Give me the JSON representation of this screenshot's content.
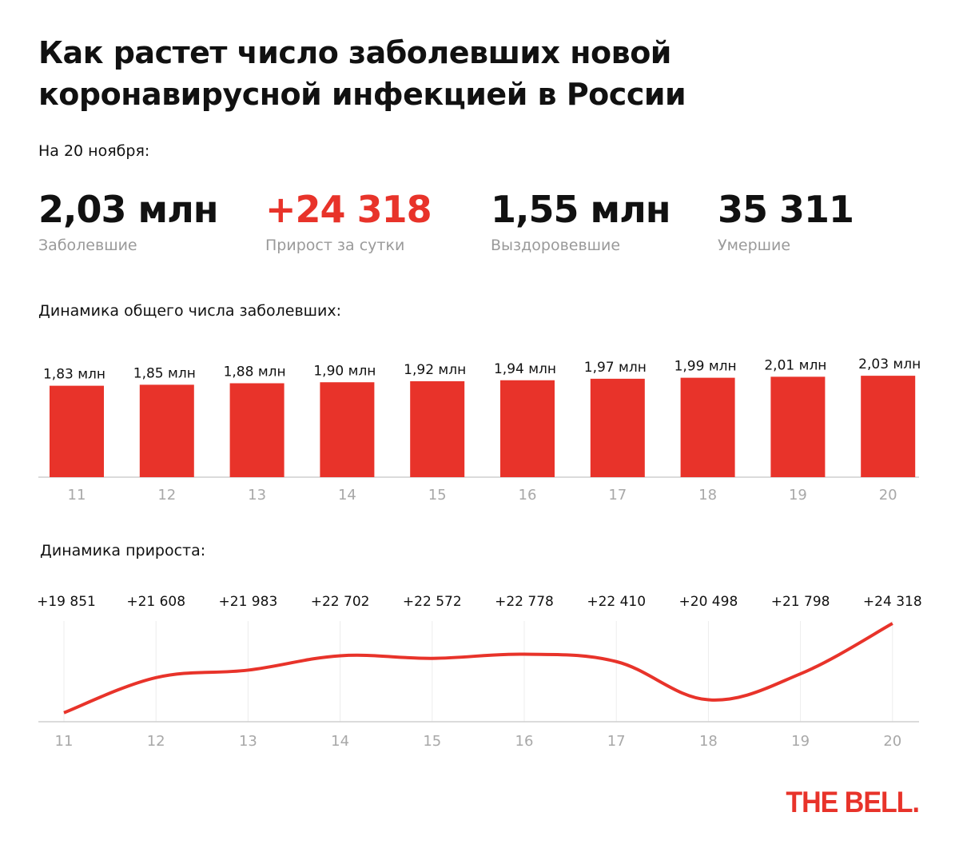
{
  "title": "Как растет число заболевших новой коронавирусной инфекцией в России",
  "date_label": "На 20 ноября:",
  "stats": [
    {
      "value": "2,03 млн",
      "label": "Заболевшие",
      "color": "#111111"
    },
    {
      "value": "+24 318",
      "label": "Прирост за сутки",
      "color": "#e8332a"
    },
    {
      "value": "1,55 млн",
      "label": "Выздоровевшие",
      "color": "#111111"
    },
    {
      "value": "35 311",
      "label": "Умершие",
      "color": "#111111"
    }
  ],
  "accent_color": "#e8332a",
  "logo": "THE BELL.",
  "chart_data": [
    {
      "type": "bar",
      "title": "Динамика общего числа заболевших:",
      "categories": [
        "11",
        "12",
        "13",
        "14",
        "15",
        "16",
        "17",
        "18",
        "19",
        "20"
      ],
      "values": [
        1.83,
        1.85,
        1.88,
        1.9,
        1.92,
        1.94,
        1.97,
        1.99,
        2.01,
        2.03
      ],
      "data_labels": [
        "1,83 млн",
        "1,85 млн",
        "1,88 млн",
        "1,90 млн",
        "1,92 млн",
        "1,94 млн",
        "1,97 млн",
        "1,99 млн",
        "2,01 млн",
        "2,03 млн"
      ],
      "unit": "млн",
      "ylim": [
        0,
        2.1
      ],
      "grid": false
    },
    {
      "type": "line",
      "title": "Динамика прироста:",
      "categories": [
        "11",
        "12",
        "13",
        "14",
        "15",
        "16",
        "17",
        "18",
        "19",
        "20"
      ],
      "values": [
        19851,
        21608,
        21983,
        22702,
        22572,
        22778,
        22410,
        20498,
        21798,
        24318
      ],
      "data_labels": [
        "+19 851",
        "+21 608",
        "+21 983",
        "+22 702",
        "+22 572",
        "+22 778",
        "+22 410",
        "+20 498",
        "+21 798",
        "+24 318"
      ],
      "ylim": [
        19400,
        24800
      ],
      "grid": true
    }
  ]
}
